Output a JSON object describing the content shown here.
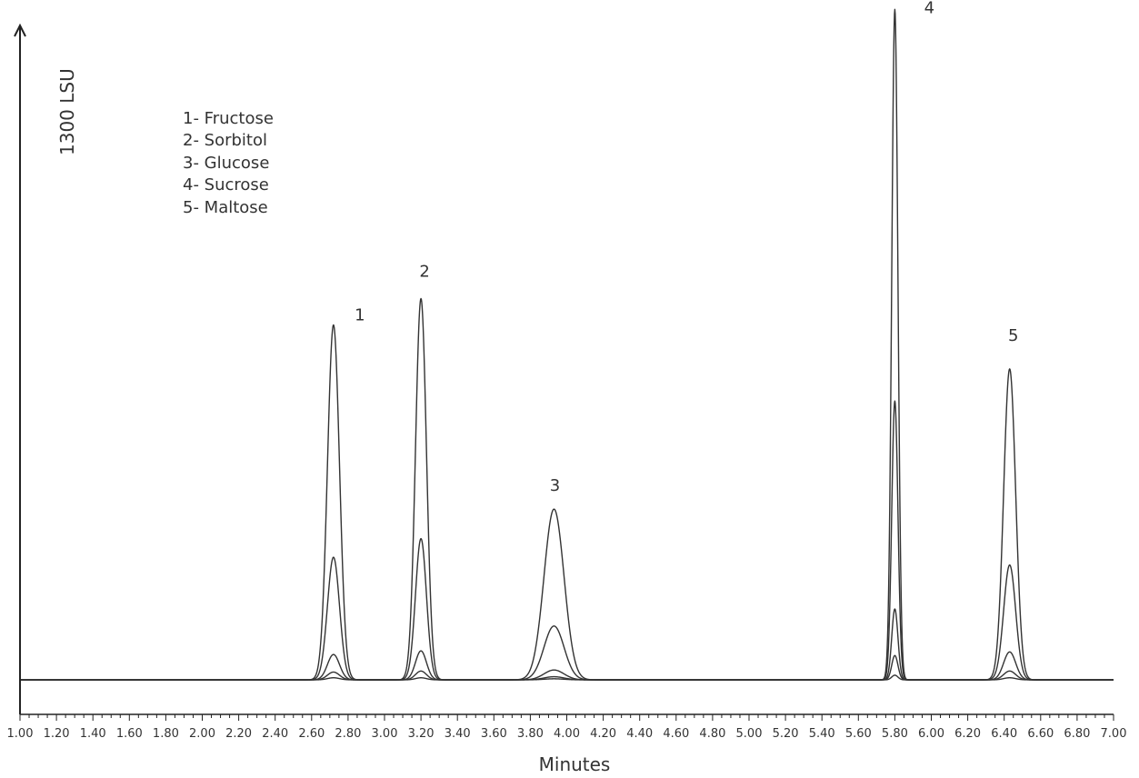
{
  "chart_data": {
    "type": "line",
    "xlabel": "Minutes",
    "ylabel": "1300 LSU",
    "xlim": [
      1.0,
      7.0
    ],
    "xticks": [
      "1.00",
      "1.20",
      "1.40",
      "1.60",
      "1.80",
      "2.00",
      "2.20",
      "2.40",
      "2.60",
      "2.80",
      "3.00",
      "3.20",
      "3.40",
      "3.60",
      "3.80",
      "4.00",
      "4.20",
      "4.40",
      "4.60",
      "4.80",
      "5.00",
      "5.20",
      "5.40",
      "5.60",
      "5.80",
      "6.00",
      "6.20",
      "6.40",
      "6.60",
      "6.80",
      "7.00"
    ],
    "y_full_scale": 1300,
    "legend": [
      "1- Fructose",
      "2- Sorbitol",
      "3- Glucose",
      "4- Sucrose",
      "5- Maltose"
    ],
    "peaks": [
      {
        "label": "1",
        "compound": "Fructose",
        "rt": 2.72,
        "sigma": 0.033,
        "heights": [
          686,
          237,
          49,
          15,
          4
        ]
      },
      {
        "label": "2",
        "compound": "Sorbitol",
        "rt": 3.2,
        "sigma": 0.03,
        "heights": [
          737,
          273,
          56,
          17,
          4
        ]
      },
      {
        "label": "3",
        "compound": "Glucose",
        "rt": 3.93,
        "sigma": 0.055,
        "heights": [
          330,
          104,
          19,
          6,
          2
        ]
      },
      {
        "label": "4",
        "compound": "Sucrose",
        "rt": 5.8,
        "sigma": 0.017,
        "heights": [
          1296,
          539,
          137,
          47,
          9
        ]
      },
      {
        "label": "5",
        "compound": "Maltose",
        "rt": 6.43,
        "sigma": 0.033,
        "heights": [
          601,
          222,
          54,
          17,
          4
        ]
      }
    ],
    "series": [
      {
        "level": 1
      },
      {
        "level": 2
      },
      {
        "level": 3
      },
      {
        "level": 4
      },
      {
        "level": 5
      }
    ],
    "line_color": "#333333"
  }
}
